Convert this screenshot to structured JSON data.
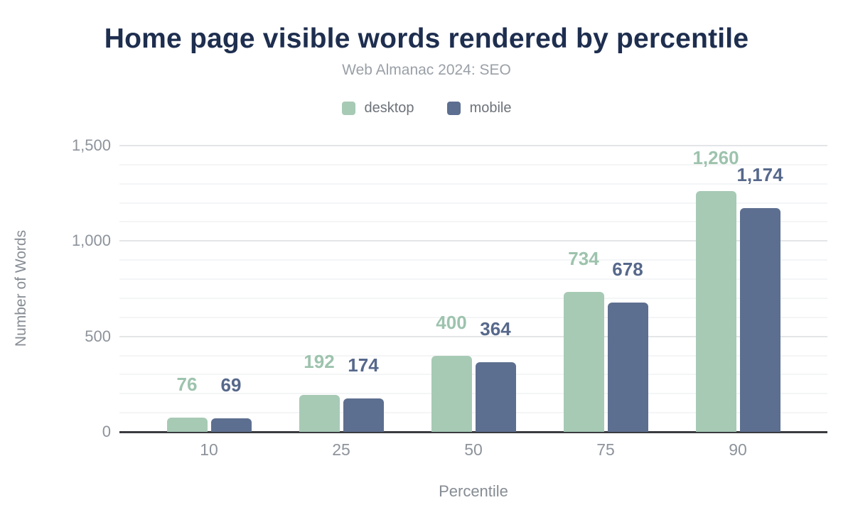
{
  "chart": {
    "title": "Home page visible words rendered by percentile",
    "subtitle": "Web Almanac 2024: SEO",
    "xlabel": "Percentile",
    "ylabel": "Number of Words"
  },
  "chart_data": {
    "type": "bar",
    "title": "Home page visible words rendered by percentile",
    "subtitle": "Web Almanac 2024: SEO",
    "xlabel": "Percentile",
    "ylabel": "Number of Words",
    "categories": [
      "10",
      "25",
      "50",
      "75",
      "90"
    ],
    "series": [
      {
        "name": "desktop",
        "color": "#a7cab5",
        "label_color": "#9dc3ad",
        "values": [
          76,
          192,
          400,
          734,
          1260
        ]
      },
      {
        "name": "mobile",
        "color": "#5d6f90",
        "label_color": "#56688b",
        "values": [
          69,
          174,
          364,
          678,
          1174
        ]
      }
    ],
    "ylim": [
      0,
      1500
    ],
    "y_major_ticks": [
      0,
      500,
      1000,
      1500
    ],
    "y_minor_step": 100,
    "grid": true,
    "legend_position": "top",
    "value_labels": true,
    "colors": {
      "title": "#1e2e4f",
      "subtitle": "#9aa0a7",
      "axis_line": "#3a3b3f",
      "tick_label": "#8d939b",
      "axis_title": "#868c93"
    }
  }
}
